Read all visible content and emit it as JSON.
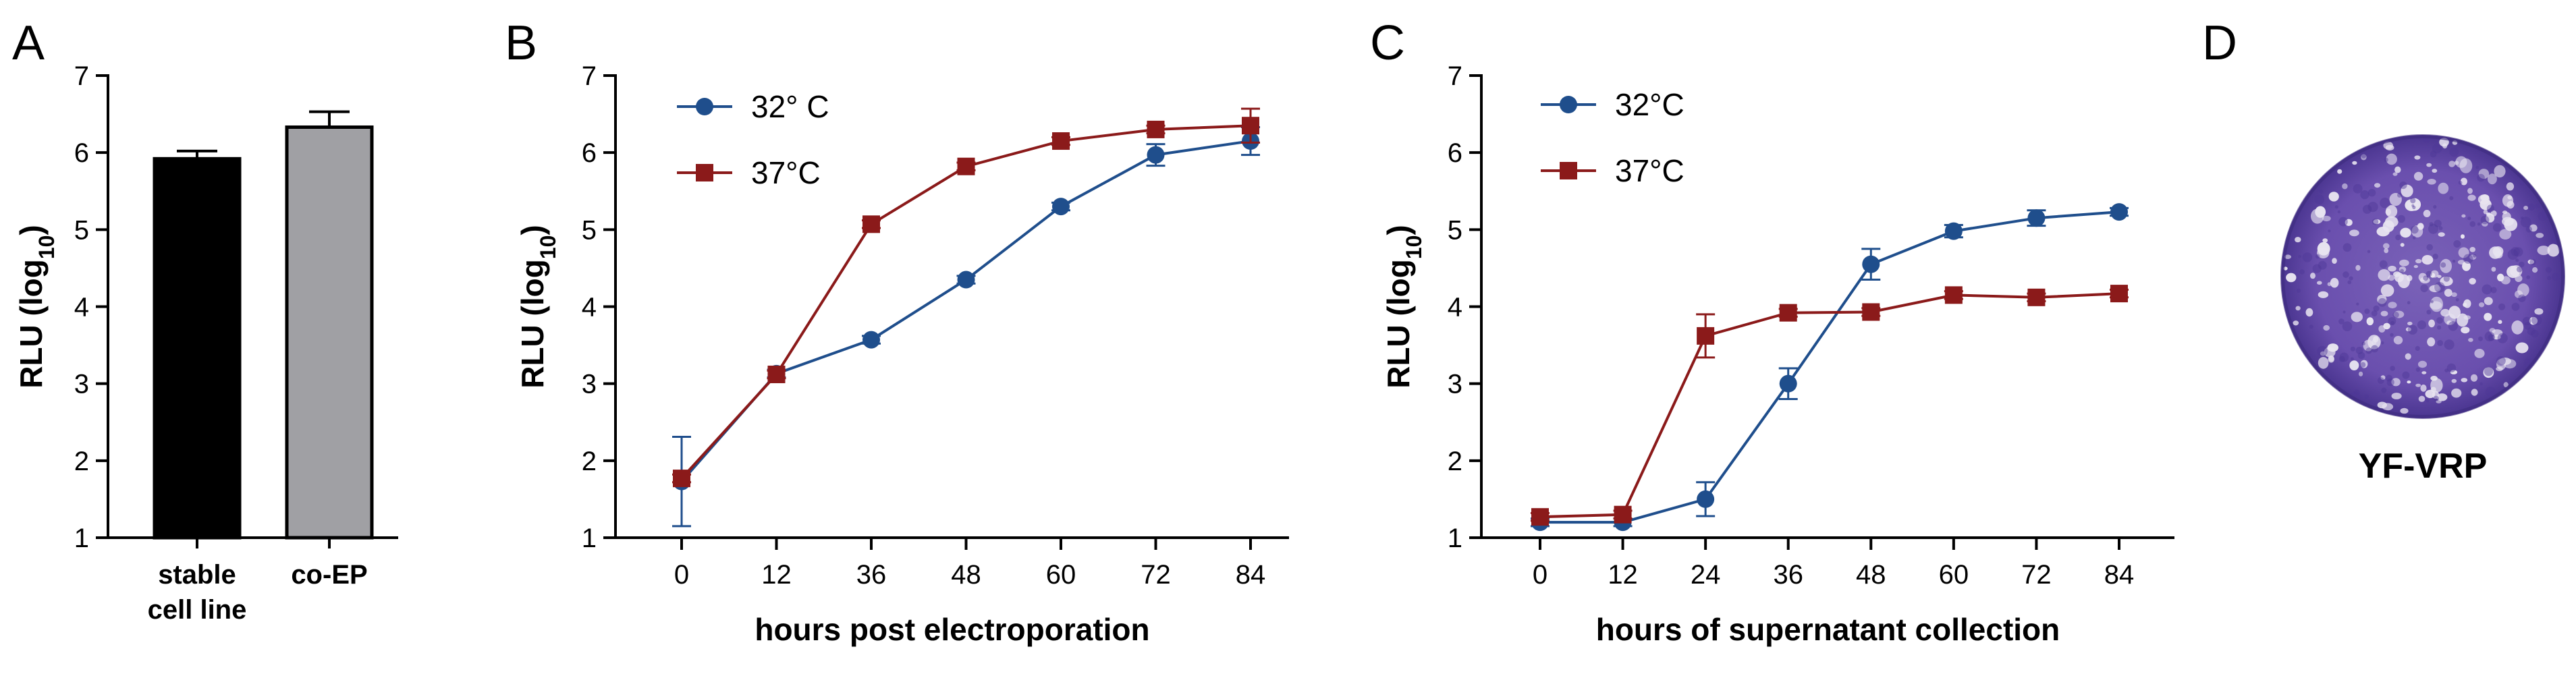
{
  "panels": {
    "a": {
      "letter": "A"
    },
    "b": {
      "letter": "B"
    },
    "c": {
      "letter": "C"
    },
    "d": {
      "letter": "D",
      "caption": "YF-VRP",
      "image_colors": {
        "dish": "#6a4fae",
        "plaque": "#e8e4f0",
        "rim": "#3e2b7e"
      }
    }
  },
  "chart_data": [
    {
      "type": "bar",
      "categories": [
        [
          "stable",
          "cell line"
        ],
        [
          "co-EP"
        ]
      ],
      "values": [
        5.92,
        6.33
      ],
      "error": [
        0.1,
        0.2
      ],
      "colors": [
        "#000000",
        "#a0a0a4"
      ],
      "xlabel": "",
      "ylabel": "RLU (log",
      "ylabel_sub": "10",
      "ylabel_end": ")",
      "ylim": [
        1,
        7
      ],
      "yticks": [
        "1",
        "2",
        "3",
        "4",
        "5",
        "6",
        "7"
      ],
      "grid": false
    },
    {
      "type": "line",
      "x": [
        0,
        12,
        36,
        48,
        60,
        72,
        84
      ],
      "xticks": [
        "0",
        "12",
        "36",
        "48",
        "60",
        "72",
        "84"
      ],
      "series": [
        {
          "name": "32° C",
          "color": "#1f4e8c",
          "marker": "circle",
          "values": [
            1.73,
            3.13,
            3.57,
            4.35,
            5.3,
            5.97,
            6.15
          ],
          "error": [
            0.58,
            0.05,
            0.05,
            0.05,
            0.05,
            0.14,
            0.18
          ]
        },
        {
          "name": "37°C",
          "color": "#8b1a1a",
          "marker": "square",
          "values": [
            1.77,
            3.12,
            5.07,
            5.82,
            6.15,
            6.3,
            6.35
          ],
          "error": [
            0.05,
            0.05,
            0.05,
            0.05,
            0.05,
            0.05,
            0.22
          ]
        }
      ],
      "xlabel": "hours post electroporation",
      "ylabel": "RLU (log",
      "ylabel_sub": "10",
      "ylabel_end": ")",
      "ylim": [
        1,
        7
      ],
      "yticks": [
        "1",
        "2",
        "3",
        "4",
        "5",
        "6",
        "7"
      ],
      "legend_position": "top-left",
      "grid": false
    },
    {
      "type": "line",
      "x": [
        0,
        12,
        24,
        36,
        48,
        60,
        72,
        84
      ],
      "xticks": [
        "0",
        "12",
        "24",
        "36",
        "48",
        "60",
        "72",
        "84"
      ],
      "series": [
        {
          "name": "32°C",
          "color": "#1f4e8c",
          "marker": "circle",
          "values": [
            1.2,
            1.2,
            1.5,
            3.0,
            4.55,
            4.98,
            5.15,
            5.23
          ],
          "error": [
            0.05,
            0.05,
            0.22,
            0.2,
            0.2,
            0.08,
            0.1,
            0.05
          ]
        },
        {
          "name": "37°C",
          "color": "#8b1a1a",
          "marker": "square",
          "values": [
            1.27,
            1.3,
            3.62,
            3.92,
            3.93,
            4.15,
            4.12,
            4.17
          ],
          "error": [
            0.05,
            0.05,
            0.28,
            0.05,
            0.05,
            0.05,
            0.05,
            0.05
          ]
        }
      ],
      "xlabel": "hours of supernatant collection",
      "ylabel": "RLU (log",
      "ylabel_sub": "10",
      "ylabel_end": ")",
      "ylim": [
        1,
        7
      ],
      "yticks": [
        "1",
        "2",
        "3",
        "4",
        "5",
        "6",
        "7"
      ],
      "legend_position": "top-left",
      "grid": false
    }
  ]
}
